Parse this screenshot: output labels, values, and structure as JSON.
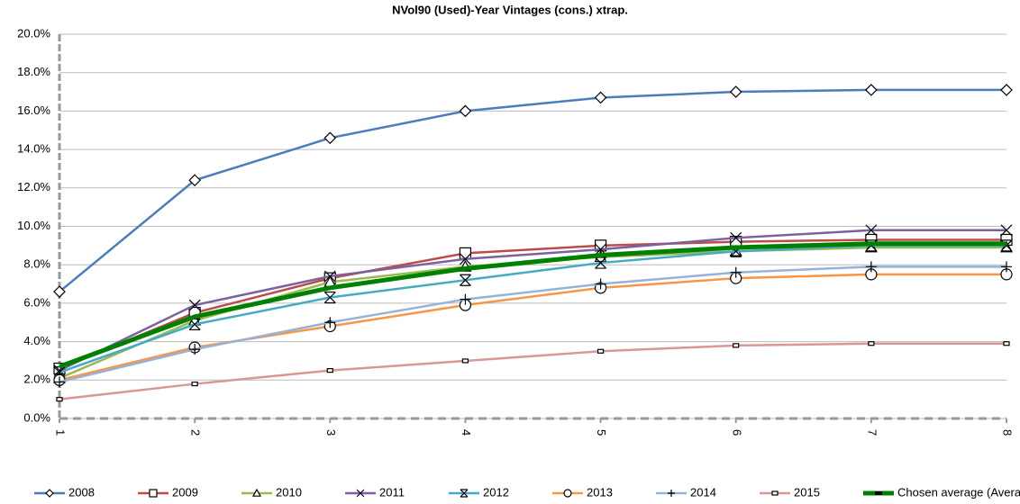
{
  "chart_data": {
    "type": "line",
    "title": "NVol90 (Used)-Year Vintages (cons.) xtrap.",
    "x": [
      1,
      2,
      3,
      4,
      5,
      6,
      7,
      8
    ],
    "xlim": [
      1,
      8
    ],
    "xticks": [
      1,
      2,
      3,
      4,
      5,
      6,
      7,
      8
    ],
    "ylim": [
      0,
      20
    ],
    "yticks": [
      {
        "value": 0,
        "label": "0.0%"
      },
      {
        "value": 2,
        "label": "2.0%"
      },
      {
        "value": 4,
        "label": "4.0%"
      },
      {
        "value": 6,
        "label": "6.0%"
      },
      {
        "value": 8,
        "label": "8.0%"
      },
      {
        "value": 10,
        "label": "10.0%"
      },
      {
        "value": 12,
        "label": "12.0%"
      },
      {
        "value": 14,
        "label": "14.0%"
      },
      {
        "value": 16,
        "label": "16.0%"
      },
      {
        "value": 18,
        "label": "18.0%"
      },
      {
        "value": 20,
        "label": "20.0%"
      }
    ],
    "grid": true,
    "legend": "bottom",
    "series": [
      {
        "name": "2008",
        "color": "#4a7ebb",
        "marker": "diamond",
        "values": [
          6.6,
          12.4,
          14.6,
          16.0,
          16.7,
          17.0,
          17.1,
          17.1
        ]
      },
      {
        "name": "2009",
        "color": "#be4b48",
        "marker": "square",
        "values": [
          2.6,
          5.5,
          7.3,
          8.6,
          9.0,
          9.2,
          9.3,
          9.3
        ]
      },
      {
        "name": "2010",
        "color": "#98b954",
        "marker": "triangle",
        "values": [
          2.1,
          5.1,
          7.1,
          7.9,
          8.4,
          8.7,
          8.9,
          8.9
        ]
      },
      {
        "name": "2011",
        "color": "#7d60a0",
        "marker": "x",
        "values": [
          2.5,
          5.9,
          7.4,
          8.3,
          8.8,
          9.4,
          9.8,
          9.8
        ]
      },
      {
        "name": "2012",
        "color": "#46aac5",
        "marker": "star",
        "values": [
          2.4,
          4.9,
          6.3,
          7.2,
          8.1,
          8.7,
          9.0,
          9.0
        ]
      },
      {
        "name": "2013",
        "color": "#f79646",
        "marker": "circle",
        "values": [
          2.0,
          3.7,
          4.8,
          5.9,
          6.8,
          7.3,
          7.5,
          7.5
        ]
      },
      {
        "name": "2014",
        "color": "#95b3d7",
        "marker": "plus",
        "values": [
          1.9,
          3.6,
          5.0,
          6.2,
          7.0,
          7.6,
          7.9,
          7.9
        ]
      },
      {
        "name": "2015",
        "color": "#d99795",
        "marker": "dash",
        "values": [
          1.0,
          1.8,
          2.5,
          3.0,
          3.5,
          3.8,
          3.9,
          3.9
        ]
      },
      {
        "name": "Chosen average (Average)",
        "color": "#008000",
        "marker": "none",
        "values": [
          2.7,
          5.3,
          6.8,
          7.8,
          8.5,
          8.9,
          9.1,
          9.1
        ]
      }
    ]
  }
}
